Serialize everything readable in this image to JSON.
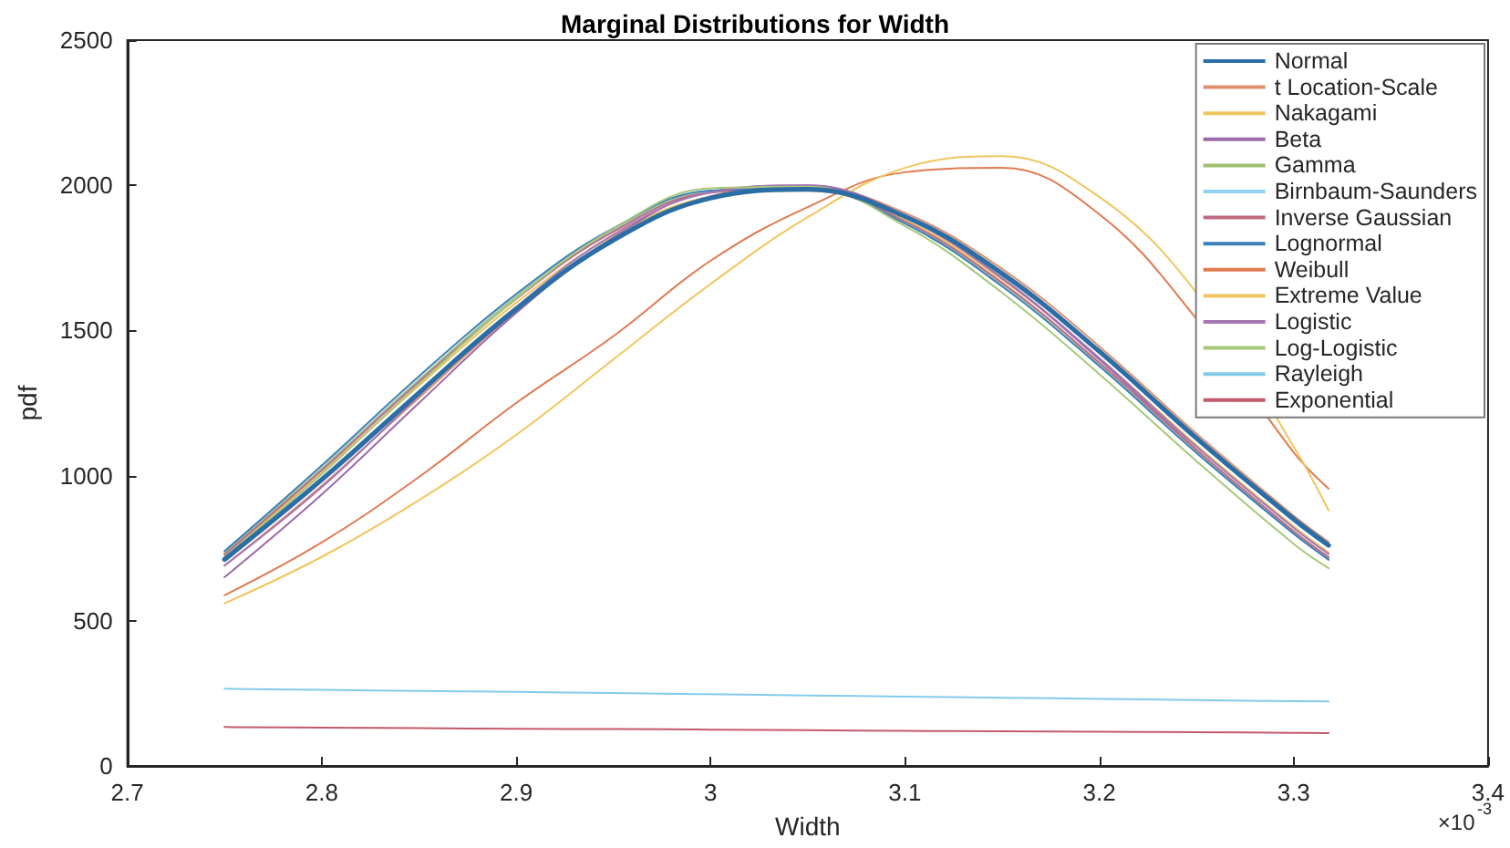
{
  "chart_data": {
    "type": "line",
    "title": "Marginal Distributions for Width",
    "xlabel": "Width",
    "ylabel": "pdf",
    "annotations": [
      "×10$^{-3}$"
    ],
    "x": [
      2.75,
      2.8,
      2.85,
      2.9,
      2.95,
      3.0,
      3.05,
      3.1,
      3.15,
      3.2,
      3.25,
      3.3,
      3.318
    ],
    "xlim": [
      2.7,
      3.4
    ],
    "xticks": [
      2.7,
      2.8,
      2.9,
      3,
      3.1,
      3.2,
      3.3,
      3.4
    ],
    "ylim": [
      0,
      2500
    ],
    "yticks": [
      0,
      500,
      1000,
      1500,
      2000,
      2500
    ],
    "grid": false,
    "legend": "top right",
    "marker": "none",
    "line_style": "solid",
    "series": [
      {
        "name": "Normal",
        "color": "#2b6ea6",
        "values": [
          711,
          986,
          1285,
          1574,
          1811,
          1956,
          1986,
          1893,
          1696,
          1428,
          1129,
          850,
          760
        ]
      },
      {
        "name": "t Location-Scale",
        "color": "#e0906e",
        "values": [
          690,
          965,
          1268,
          1565,
          1810,
          1962,
          1995,
          1905,
          1712,
          1445,
          1145,
          862,
          772
        ]
      },
      {
        "name": "Nakagami",
        "color": "#eec45e",
        "values": [
          725,
          1010,
          1310,
          1595,
          1825,
          1960,
          1982,
          1880,
          1675,
          1405,
          1105,
          825,
          735
        ]
      },
      {
        "name": "Beta",
        "color": "#9b6aa8",
        "values": [
          650,
          935,
          1250,
          1560,
          1820,
          1978,
          2000,
          1895,
          1680,
          1400,
          1090,
          800,
          715
        ]
      },
      {
        "name": "Gamma",
        "color": "#a0c070",
        "values": [
          735,
          1025,
          1330,
          1615,
          1845,
          1978,
          1988,
          1872,
          1660,
          1385,
          1085,
          805,
          715
        ]
      },
      {
        "name": "Birnbaum-Saunders",
        "color": "#8fd3ef",
        "values": [
          730,
          1020,
          1325,
          1610,
          1842,
          1976,
          1988,
          1875,
          1663,
          1388,
          1088,
          808,
          718
        ]
      },
      {
        "name": "Inverse Gaussian",
        "color": "#c06a82",
        "values": [
          728,
          1018,
          1323,
          1608,
          1840,
          1975,
          1988,
          1876,
          1664,
          1389,
          1089,
          809,
          719
        ]
      },
      {
        "name": "Lognormal",
        "color": "#3c82b8",
        "values": [
          740,
          1035,
          1342,
          1625,
          1852,
          1982,
          1988,
          1868,
          1652,
          1377,
          1078,
          800,
          710
        ]
      },
      {
        "name": "Weibull",
        "color": "#e07a52",
        "values": [
          588,
          770,
          995,
          1250,
          1480,
          1740,
          1925,
          2045,
          2060,
          1900,
          1540,
          1080,
          955
        ]
      },
      {
        "name": "Extreme Value",
        "color": "#f0c65e",
        "values": [
          560,
          720,
          915,
          1140,
          1400,
          1660,
          1890,
          2060,
          2100,
          1960,
          1630,
          1100,
          880
        ]
      },
      {
        "name": "Logistic",
        "color": "#a576b2",
        "values": [
          690,
          960,
          1275,
          1580,
          1830,
          1975,
          2000,
          1890,
          1680,
          1405,
          1100,
          820,
          730
        ]
      },
      {
        "name": "Log-Logistic",
        "color": "#a8c87a",
        "values": [
          720,
          1005,
          1315,
          1610,
          1850,
          1990,
          1995,
          1860,
          1630,
          1350,
          1050,
          765,
          681
        ]
      },
      {
        "name": "Rayleigh",
        "color": "#84cbea",
        "values": [
          266,
          262,
          258,
          255,
          251,
          247,
          243,
          239,
          235,
          231,
          227,
          223,
          222
        ]
      },
      {
        "name": "Exponential",
        "color": "#c25a6a",
        "values": [
          134,
          132,
          130,
          128,
          127,
          125,
          123,
          121,
          119,
          118,
          116,
          114,
          113
        ]
      }
    ]
  }
}
